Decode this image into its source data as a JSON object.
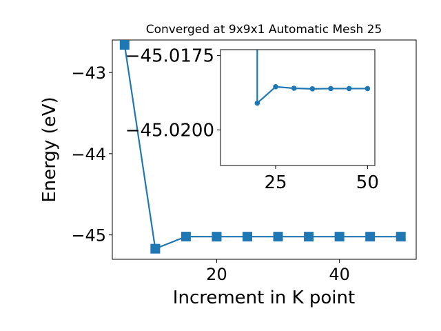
{
  "chart_data": [
    {
      "type": "line",
      "title": "Converged at 9x9x1 Automatic Mesh 25",
      "xlabel": "Increment in K point",
      "ylabel": "Energy (eV)",
      "xlim": [
        3,
        52.5
      ],
      "ylim": [
        -45.3,
        -42.6
      ],
      "xticks": [
        20,
        40
      ],
      "yticks": [
        -43,
        -44,
        -45
      ],
      "xtick_labels": [
        "20",
        "40"
      ],
      "ytick_labels": [
        "−43",
        "−44",
        "−45"
      ],
      "grid": false,
      "marker": "square",
      "color": "#1f77b4",
      "series": [
        {
          "x": [
            5,
            10,
            15,
            20,
            25,
            30,
            35,
            40,
            45,
            50
          ],
          "y": [
            -42.66,
            -45.17,
            -45.0205,
            -45.0215,
            -45.0213,
            -45.0212,
            -45.0212,
            -45.0212,
            -45.0212,
            -45.0212
          ]
        }
      ]
    },
    {
      "type": "line",
      "title": "",
      "inset": true,
      "xlim": [
        10,
        52
      ],
      "ylim": [
        -45.0212,
        -45.0173
      ],
      "xticks": [
        25,
        50
      ],
      "yticks": [
        -45.02,
        -45.0175
      ],
      "xtick_labels": [
        "25",
        "50"
      ],
      "ytick_labels": [
        "−45.0200",
        "−45.0175"
      ],
      "grid": false,
      "marker": "circle",
      "color": "#1f77b4",
      "series": [
        {
          "x": [
            20,
            25,
            30,
            35,
            40,
            45,
            50
          ],
          "y": [
            -45.0191,
            -45.01855,
            -45.0186,
            -45.01862,
            -45.01861,
            -45.01861,
            -45.01861
          ],
          "off_top_at": 20
        }
      ]
    }
  ]
}
